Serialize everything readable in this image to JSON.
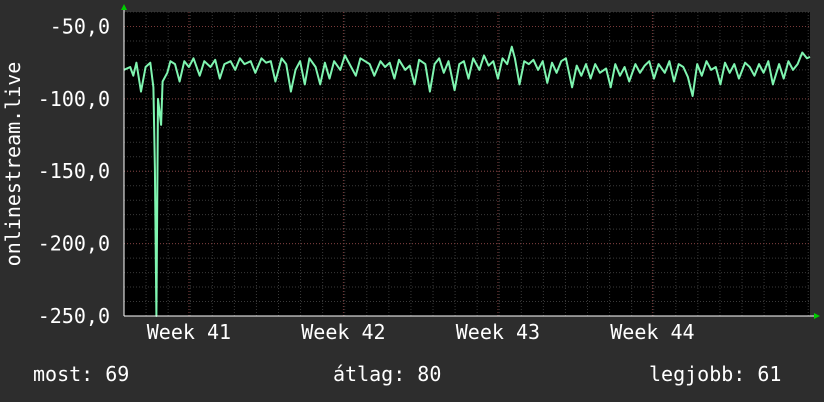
{
  "chart_data": {
    "type": "line",
    "ylabel": "onlinestream.live",
    "y_ticks": [
      "-50,0",
      "-100,0",
      "-150,0",
      "-200,0",
      "-250,0"
    ],
    "y_tick_values": [
      -50,
      -100,
      -150,
      -200,
      -250
    ],
    "ylim": [
      -250,
      -40
    ],
    "x_ticks": [
      "Week 41",
      "Week 42",
      "Week 43",
      "Week 44"
    ],
    "x_tick_positions": [
      1,
      2,
      3,
      4
    ],
    "xlim": [
      0.58,
      5.02
    ],
    "grid": true,
    "series": [
      {
        "values": [
          [
            0.58,
            -80
          ],
          [
            0.62,
            -78
          ],
          [
            0.64,
            -84
          ],
          [
            0.66,
            -75
          ],
          [
            0.69,
            -95
          ],
          [
            0.72,
            -78
          ],
          [
            0.75,
            -75
          ],
          [
            0.77,
            -92
          ],
          [
            0.78,
            -148
          ],
          [
            0.79,
            -250
          ],
          [
            0.8,
            -100
          ],
          [
            0.82,
            -118
          ],
          [
            0.83,
            -88
          ],
          [
            0.86,
            -82
          ],
          [
            0.88,
            -74
          ],
          [
            0.91,
            -76
          ],
          [
            0.94,
            -88
          ],
          [
            0.97,
            -74
          ],
          [
            1.0,
            -78
          ],
          [
            1.03,
            -72
          ],
          [
            1.07,
            -84
          ],
          [
            1.1,
            -74
          ],
          [
            1.14,
            -78
          ],
          [
            1.17,
            -73
          ],
          [
            1.2,
            -86
          ],
          [
            1.23,
            -76
          ],
          [
            1.27,
            -74
          ],
          [
            1.3,
            -80
          ],
          [
            1.33,
            -72
          ],
          [
            1.36,
            -76
          ],
          [
            1.4,
            -74
          ],
          [
            1.43,
            -82
          ],
          [
            1.47,
            -72
          ],
          [
            1.5,
            -75
          ],
          [
            1.53,
            -74
          ],
          [
            1.56,
            -88
          ],
          [
            1.6,
            -72
          ],
          [
            1.63,
            -76
          ],
          [
            1.66,
            -95
          ],
          [
            1.69,
            -80
          ],
          [
            1.72,
            -74
          ],
          [
            1.75,
            -90
          ],
          [
            1.78,
            -72
          ],
          [
            1.82,
            -78
          ],
          [
            1.85,
            -90
          ],
          [
            1.88,
            -75
          ],
          [
            1.91,
            -86
          ],
          [
            1.94,
            -74
          ],
          [
            1.98,
            -80
          ],
          [
            2.01,
            -70
          ],
          [
            2.04,
            -76
          ],
          [
            2.08,
            -84
          ],
          [
            2.11,
            -72
          ],
          [
            2.14,
            -74
          ],
          [
            2.17,
            -76
          ],
          [
            2.2,
            -84
          ],
          [
            2.24,
            -74
          ],
          [
            2.27,
            -78
          ],
          [
            2.3,
            -75
          ],
          [
            2.33,
            -86
          ],
          [
            2.36,
            -73
          ],
          [
            2.4,
            -80
          ],
          [
            2.43,
            -77
          ],
          [
            2.46,
            -90
          ],
          [
            2.49,
            -73
          ],
          [
            2.53,
            -76
          ],
          [
            2.56,
            -95
          ],
          [
            2.59,
            -76
          ],
          [
            2.62,
            -72
          ],
          [
            2.65,
            -82
          ],
          [
            2.68,
            -74
          ],
          [
            2.72,
            -94
          ],
          [
            2.75,
            -76
          ],
          [
            2.78,
            -74
          ],
          [
            2.81,
            -86
          ],
          [
            2.84,
            -72
          ],
          [
            2.88,
            -80
          ],
          [
            2.91,
            -70
          ],
          [
            2.94,
            -77
          ],
          [
            2.97,
            -74
          ],
          [
            3.0,
            -86
          ],
          [
            3.03,
            -72
          ],
          [
            3.06,
            -76
          ],
          [
            3.09,
            -64
          ],
          [
            3.11,
            -72
          ],
          [
            3.14,
            -90
          ],
          [
            3.17,
            -74
          ],
          [
            3.2,
            -76
          ],
          [
            3.23,
            -73
          ],
          [
            3.26,
            -80
          ],
          [
            3.29,
            -74
          ],
          [
            3.32,
            -89
          ],
          [
            3.35,
            -75
          ],
          [
            3.38,
            -82
          ],
          [
            3.41,
            -74
          ],
          [
            3.44,
            -72
          ],
          [
            3.48,
            -92
          ],
          [
            3.51,
            -77
          ],
          [
            3.54,
            -84
          ],
          [
            3.57,
            -76
          ],
          [
            3.6,
            -86
          ],
          [
            3.63,
            -76
          ],
          [
            3.66,
            -82
          ],
          [
            3.7,
            -79
          ],
          [
            3.73,
            -92
          ],
          [
            3.76,
            -76
          ],
          [
            3.79,
            -84
          ],
          [
            3.82,
            -78
          ],
          [
            3.85,
            -88
          ],
          [
            3.89,
            -76
          ],
          [
            3.92,
            -82
          ],
          [
            3.95,
            -77
          ],
          [
            3.98,
            -74
          ],
          [
            4.01,
            -86
          ],
          [
            4.04,
            -76
          ],
          [
            4.08,
            -82
          ],
          [
            4.11,
            -74
          ],
          [
            4.14,
            -88
          ],
          [
            4.17,
            -76
          ],
          [
            4.2,
            -78
          ],
          [
            4.23,
            -85
          ],
          [
            4.26,
            -98
          ],
          [
            4.29,
            -76
          ],
          [
            4.32,
            -84
          ],
          [
            4.35,
            -74
          ],
          [
            4.38,
            -80
          ],
          [
            4.41,
            -78
          ],
          [
            4.44,
            -90
          ],
          [
            4.47,
            -75
          ],
          [
            4.5,
            -82
          ],
          [
            4.53,
            -76
          ],
          [
            4.56,
            -86
          ],
          [
            4.6,
            -75
          ],
          [
            4.63,
            -78
          ],
          [
            4.66,
            -84
          ],
          [
            4.69,
            -76
          ],
          [
            4.72,
            -82
          ],
          [
            4.75,
            -74
          ],
          [
            4.78,
            -90
          ],
          [
            4.82,
            -76
          ],
          [
            4.85,
            -86
          ],
          [
            4.88,
            -74
          ],
          [
            4.91,
            -80
          ],
          [
            4.94,
            -76
          ],
          [
            4.97,
            -68
          ],
          [
            5.0,
            -72
          ],
          [
            5.02,
            -71
          ]
        ]
      }
    ]
  },
  "stats": {
    "now": "most: 69",
    "avg": "átlag: 80",
    "best": "legjobb: 61"
  },
  "colors": {
    "background": "#2d2d2d",
    "plot_bg": "#000000",
    "line": "#7ff5b0",
    "grid_minor": "#3a3a3a",
    "grid_major": "#7a3a3a",
    "arrow": "#00cc00",
    "text": "#ffffff"
  }
}
